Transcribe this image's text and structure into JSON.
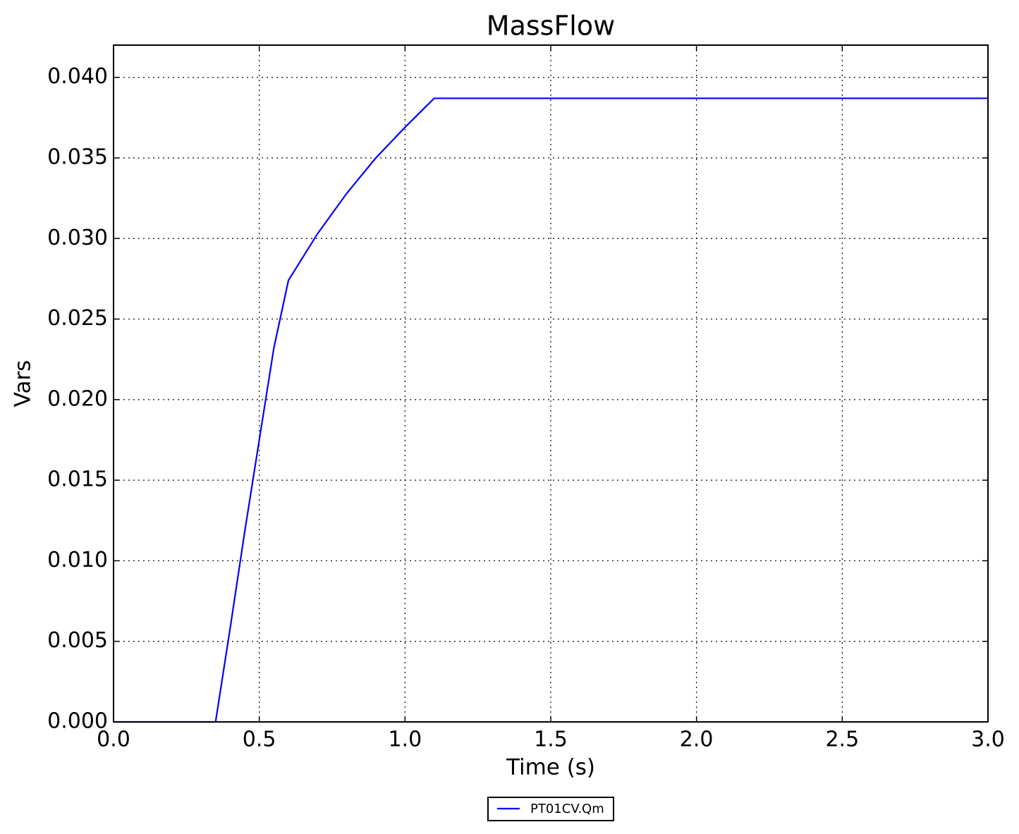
{
  "chart_data": {
    "type": "line",
    "title": "MassFlow",
    "x_label": "Time (s)",
    "y_label": "Vars",
    "x": [
      0,
      0.35,
      0.4,
      0.45,
      0.5,
      0.55,
      0.6,
      0.7,
      0.8,
      0.9,
      1.0,
      1.1,
      3.0
    ],
    "series": [
      {
        "name": "PT01CV.Qm",
        "color": "#0000ff",
        "values": [
          0,
          0,
          0.0058,
          0.0118,
          0.0175,
          0.0232,
          0.0274,
          0.0303,
          0.0328,
          0.035,
          0.0369,
          0.0387,
          0.0387
        ]
      }
    ],
    "xlim": [
      0,
      3.0
    ],
    "ylim": [
      0,
      0.042
    ],
    "xticks": [
      {
        "value": 0,
        "label": "0.0"
      },
      0.5,
      {
        "value": 1,
        "label": "1.0"
      },
      1.5,
      {
        "value": 2,
        "label": "2.0"
      },
      2.5,
      {
        "value": 3,
        "label": "3.0"
      }
    ],
    "yticks": [
      {
        "value": 0,
        "label": "0.000"
      },
      0.005,
      {
        "value": 0.01,
        "label": "0.010"
      },
      0.015,
      {
        "value": 0.02,
        "label": "0.020"
      },
      0.025,
      {
        "value": 0.03,
        "label": "0.030"
      },
      0.035,
      {
        "value": 0.04,
        "label": "0.040"
      }
    ],
    "grid": true,
    "legend": "below"
  }
}
